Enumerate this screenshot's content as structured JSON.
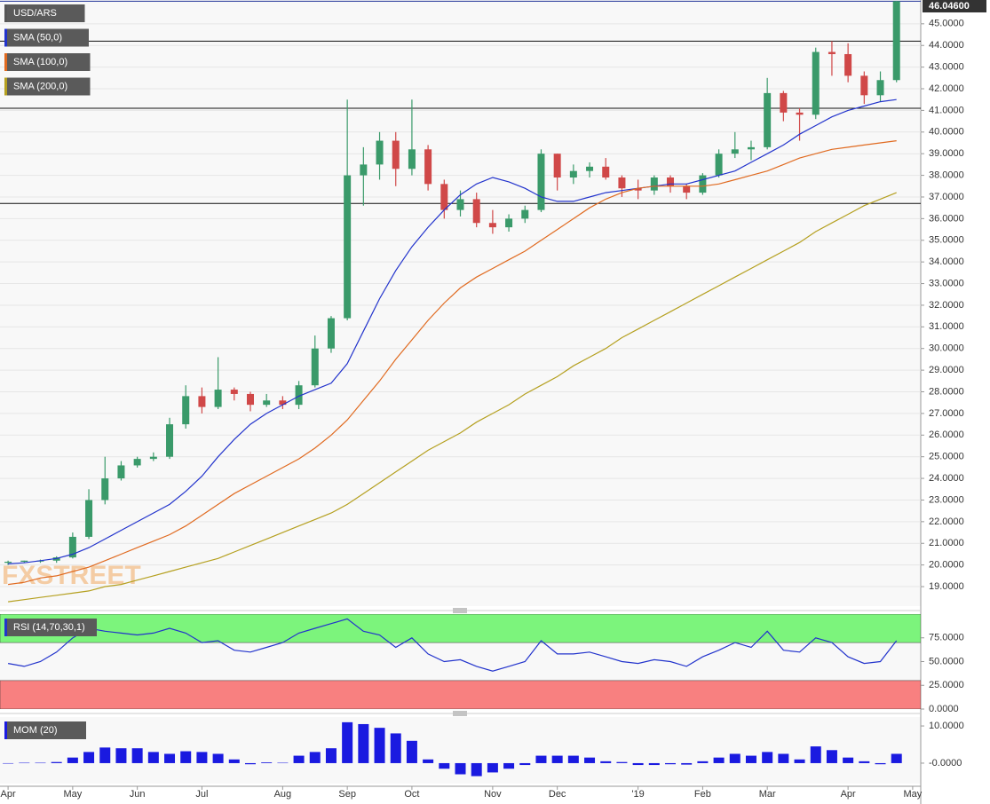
{
  "chart_data": [
    {
      "type": "candlestick",
      "watermark": "FXSTREET",
      "ylim": [
        18.1,
        46.1
      ],
      "yticks": [
        {
          "value": 19,
          "label": "19.0000"
        },
        {
          "value": 20,
          "label": "20.0000"
        },
        {
          "value": 21,
          "label": "21.0000"
        },
        {
          "value": 22,
          "label": "22.0000"
        },
        {
          "value": 23,
          "label": "23.0000"
        },
        {
          "value": 24,
          "label": "24.0000"
        },
        {
          "value": 25,
          "label": "25.0000"
        },
        {
          "value": 26,
          "label": "26.0000"
        },
        {
          "value": 27,
          "label": "27.0000"
        },
        {
          "value": 28,
          "label": "28.0000"
        },
        {
          "value": 29,
          "label": "29.0000"
        },
        {
          "value": 30,
          "label": "30.0000"
        },
        {
          "value": 31,
          "label": "31.0000"
        },
        {
          "value": 32,
          "label": "32.0000"
        },
        {
          "value": 33,
          "label": "33.0000"
        },
        {
          "value": 34,
          "label": "34.0000"
        },
        {
          "value": 35,
          "label": "35.0000"
        },
        {
          "value": 36,
          "label": "36.0000"
        },
        {
          "value": 37,
          "label": "37.0000"
        },
        {
          "value": 38,
          "label": "38.0000"
        },
        {
          "value": 39,
          "label": "39.0000"
        },
        {
          "value": 40,
          "label": "40.0000"
        },
        {
          "value": 41,
          "label": "41.0000"
        },
        {
          "value": 42,
          "label": "42.0000"
        },
        {
          "value": 43,
          "label": "43.0000"
        },
        {
          "value": 44,
          "label": "44.0000"
        },
        {
          "value": 45,
          "label": "45.0000"
        }
      ],
      "grid": true,
      "last_price": {
        "value": 46.046,
        "label": "46.04600"
      },
      "hlines": [
        44.2,
        41.1,
        36.7
      ],
      "series": [
        {
          "name": "USD/ARS",
          "color": "#555555",
          "up_color": "#3a9a6a",
          "down_color": "#d04848",
          "open": [
            20.1,
            20.15,
            20.2,
            20.2,
            20.35,
            21.3,
            23.0,
            24.0,
            24.6,
            24.9,
            25.0,
            26.5,
            27.8,
            27.3,
            28.1,
            27.9,
            27.4,
            27.6,
            27.4,
            28.3,
            30.0,
            31.4,
            38.0,
            38.5,
            39.6,
            38.3,
            39.2,
            37.6,
            36.4,
            36.9,
            35.8,
            35.6,
            36.0,
            36.4,
            39.0,
            37.9,
            38.2,
            38.4,
            37.9,
            37.4,
            37.3,
            37.9,
            37.5,
            37.2,
            38.0,
            39.0,
            39.2,
            39.3,
            41.8,
            40.9,
            40.8,
            43.7,
            43.6,
            42.6,
            41.7,
            42.4,
            null
          ],
          "high": [
            20.2,
            20.2,
            20.25,
            20.4,
            21.5,
            23.5,
            25.0,
            24.8,
            25.0,
            25.2,
            26.8,
            28.3,
            28.2,
            29.6,
            28.2,
            28.0,
            27.9,
            27.8,
            28.5,
            30.6,
            31.5,
            41.5,
            39.3,
            40.0,
            40.0,
            41.5,
            39.4,
            37.8,
            37.3,
            37.2,
            36.4,
            36.2,
            36.6,
            39.2,
            39.0,
            38.5,
            38.6,
            38.8,
            38.0,
            37.8,
            38.0,
            38.0,
            37.6,
            38.1,
            39.2,
            40.0,
            39.6,
            42.5,
            41.9,
            41.1,
            43.9,
            44.2,
            44.1,
            42.8,
            42.8,
            46.06,
            null
          ],
          "low": [
            20.0,
            20.1,
            20.1,
            20.1,
            20.3,
            21.2,
            22.8,
            23.9,
            24.5,
            24.8,
            24.9,
            26.3,
            27.0,
            27.2,
            27.6,
            27.1,
            27.3,
            27.2,
            27.2,
            28.2,
            29.8,
            31.3,
            36.6,
            37.8,
            37.5,
            38.0,
            37.3,
            36.0,
            36.1,
            35.6,
            35.3,
            35.4,
            35.8,
            36.3,
            37.3,
            37.6,
            37.9,
            37.8,
            37.0,
            36.9,
            37.1,
            37.2,
            36.9,
            37.1,
            37.9,
            38.8,
            38.7,
            39.2,
            40.5,
            39.6,
            40.6,
            42.6,
            42.3,
            41.3,
            41.4,
            42.3,
            null
          ],
          "close": [
            20.15,
            20.2,
            20.2,
            20.35,
            21.3,
            23.0,
            24.0,
            24.6,
            24.9,
            25.0,
            26.5,
            27.8,
            27.3,
            28.1,
            27.9,
            27.4,
            27.6,
            27.4,
            28.3,
            30.0,
            31.4,
            38.0,
            38.5,
            39.6,
            38.3,
            39.2,
            37.6,
            36.4,
            36.9,
            35.8,
            35.6,
            36.0,
            36.4,
            39.0,
            37.9,
            38.2,
            38.4,
            37.9,
            37.4,
            37.3,
            37.9,
            37.5,
            37.2,
            38.0,
            39.0,
            39.2,
            39.3,
            41.8,
            40.9,
            40.8,
            43.7,
            43.6,
            42.6,
            41.7,
            42.4,
            46.046,
            null
          ]
        },
        {
          "name": "SMA (50,0)",
          "color": "#2233cc",
          "values": [
            20.05,
            20.1,
            20.2,
            20.3,
            20.5,
            20.8,
            21.2,
            21.6,
            22.0,
            22.4,
            22.8,
            23.4,
            24.1,
            25.0,
            25.8,
            26.5,
            27.0,
            27.4,
            27.8,
            28.1,
            28.4,
            29.3,
            30.8,
            32.3,
            33.6,
            34.7,
            35.6,
            36.4,
            37.1,
            37.6,
            37.9,
            37.7,
            37.4,
            37.0,
            36.8,
            36.8,
            37.0,
            37.2,
            37.3,
            37.4,
            37.5,
            37.6,
            37.6,
            37.8,
            38.0,
            38.2,
            38.6,
            39.0,
            39.4,
            39.9,
            40.3,
            40.7,
            41.0,
            41.2,
            41.4,
            41.5,
            null
          ]
        },
        {
          "name": "SMA (100,0)",
          "color": "#e06a20",
          "values": [
            19.1,
            19.2,
            19.4,
            19.5,
            19.7,
            19.9,
            20.2,
            20.5,
            20.8,
            21.1,
            21.4,
            21.8,
            22.3,
            22.8,
            23.3,
            23.7,
            24.1,
            24.5,
            24.9,
            25.4,
            26.0,
            26.7,
            27.6,
            28.5,
            29.5,
            30.4,
            31.3,
            32.1,
            32.8,
            33.3,
            33.7,
            34.1,
            34.5,
            35.0,
            35.5,
            36.0,
            36.5,
            36.9,
            37.2,
            37.4,
            37.5,
            37.5,
            37.5,
            37.5,
            37.6,
            37.8,
            38.0,
            38.2,
            38.5,
            38.8,
            39.0,
            39.2,
            39.3,
            39.4,
            39.5,
            39.6,
            null
          ]
        },
        {
          "name": "SMA (200,0)",
          "color": "#b5a020",
          "values": [
            18.3,
            18.4,
            18.5,
            18.6,
            18.7,
            18.8,
            19.0,
            19.1,
            19.3,
            19.5,
            19.7,
            19.9,
            20.1,
            20.3,
            20.6,
            20.9,
            21.2,
            21.5,
            21.8,
            22.1,
            22.4,
            22.8,
            23.3,
            23.8,
            24.3,
            24.8,
            25.3,
            25.7,
            26.1,
            26.6,
            27.0,
            27.4,
            27.9,
            28.3,
            28.7,
            29.2,
            29.6,
            30.0,
            30.5,
            30.9,
            31.3,
            31.7,
            32.1,
            32.5,
            32.9,
            33.3,
            33.7,
            34.1,
            34.5,
            34.9,
            35.4,
            35.8,
            36.2,
            36.6,
            36.9,
            37.2,
            null
          ]
        }
      ]
    },
    {
      "type": "line",
      "ylim": [
        0,
        100
      ],
      "yticks": [
        {
          "value": 0,
          "label": "0.0000"
        },
        {
          "value": 25,
          "label": "25.0000"
        },
        {
          "value": 50,
          "label": "50.0000"
        },
        {
          "value": 75,
          "label": "75.0000"
        }
      ],
      "overbought": 70,
      "oversold": 30,
      "overbought_color": "#7cf47c",
      "oversold_color": "#f88080",
      "series": [
        {
          "name": "RSI (14,70,30,1)",
          "color": "#2233cc",
          "values": [
            48,
            45,
            50,
            60,
            75,
            85,
            82,
            80,
            78,
            80,
            85,
            80,
            70,
            72,
            62,
            60,
            65,
            70,
            80,
            85,
            90,
            95,
            82,
            78,
            65,
            75,
            58,
            50,
            52,
            45,
            40,
            45,
            50,
            72,
            58,
            58,
            60,
            55,
            50,
            48,
            52,
            50,
            45,
            55,
            62,
            70,
            65,
            82,
            62,
            60,
            75,
            70,
            55,
            48,
            50,
            72,
            null
          ]
        }
      ]
    },
    {
      "type": "bar",
      "ylim": [
        -5.5,
        12.4
      ],
      "yticks": [
        {
          "value": 0,
          "label": "-0.0000"
        },
        {
          "value": 10,
          "label": "10.0000"
        }
      ],
      "categories": [
        "Apr",
        null,
        null,
        null,
        "May",
        null,
        null,
        null,
        "Jun",
        null,
        null,
        null,
        "Jul",
        null,
        null,
        null,
        null,
        "Aug",
        null,
        null,
        null,
        "Sep",
        null,
        null,
        null,
        "Oct",
        null,
        null,
        null,
        null,
        "Nov",
        null,
        null,
        null,
        "Dec",
        null,
        null,
        null,
        null,
        "'19",
        null,
        null,
        null,
        "Feb",
        null,
        null,
        null,
        "Mar",
        null,
        null,
        null,
        null,
        "Apr",
        null,
        null,
        null,
        "May"
      ],
      "series": [
        {
          "name": "MOM (20)",
          "color": "#1a1ae0",
          "values": [
            0,
            0.1,
            0.1,
            0.3,
            1.5,
            3,
            4.2,
            4,
            4,
            3,
            2.5,
            3.2,
            3,
            2.5,
            1,
            -0.3,
            0.2,
            0.1,
            2,
            3,
            4,
            11,
            10.5,
            9.5,
            8,
            6,
            1,
            -1.5,
            -3,
            -3.5,
            -2.5,
            -1.5,
            -0.5,
            2,
            2,
            2,
            1.5,
            0.5,
            0.3,
            -0.5,
            -0.5,
            -0.3,
            -0.4,
            0.5,
            1.5,
            2.5,
            2,
            3,
            2.5,
            1,
            4.5,
            3.5,
            1.5,
            0.5,
            -0.3,
            2.5,
            null
          ]
        }
      ]
    }
  ]
}
